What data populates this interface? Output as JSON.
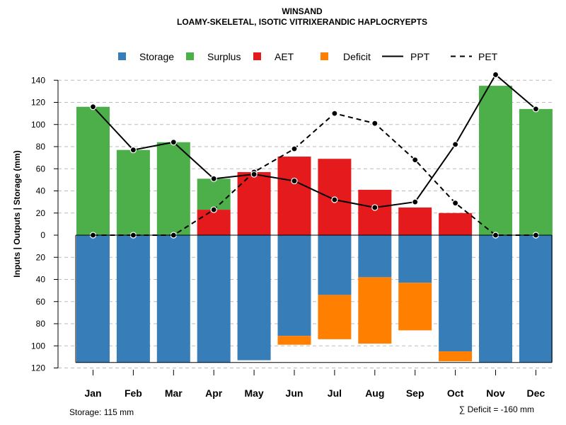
{
  "chart_data": {
    "type": "bar",
    "title": "WINSAND",
    "subtitle": "LOAMY-SKELETAL, ISOTIC VITRIXERANDIC HAPLOCRYEPTS",
    "ylabel": "Inputs | Outputs | Storage    (mm)",
    "categories": [
      "Jan",
      "Feb",
      "Mar",
      "Apr",
      "May",
      "Jun",
      "Jul",
      "Aug",
      "Sep",
      "Oct",
      "Nov",
      "Dec"
    ],
    "yticks_top": [
      0,
      20,
      40,
      60,
      80,
      100,
      120,
      140
    ],
    "yticks_bottom": [
      20,
      40,
      60,
      80,
      100,
      120
    ],
    "ylim_top": [
      0,
      150
    ],
    "ylim_bottom": [
      0,
      120
    ],
    "series": [
      {
        "name": "Storage",
        "color": "#377EB8",
        "values": [
          115,
          115,
          115,
          115,
          113,
          91,
          54,
          38,
          43,
          105,
          115,
          115
        ]
      },
      {
        "name": "Surplus",
        "color": "#4DAF4A",
        "values": [
          116,
          77,
          84,
          28,
          0,
          0,
          0,
          0,
          0,
          0,
          135,
          114
        ]
      },
      {
        "name": "AET",
        "color": "#E41A1C",
        "values": [
          0,
          0,
          0,
          23,
          57,
          71,
          69,
          41,
          25,
          20,
          0,
          0
        ]
      },
      {
        "name": "Deficit",
        "color": "#FF7F00",
        "values": [
          0,
          0,
          0,
          0,
          0,
          8,
          40,
          60,
          43,
          9,
          0,
          0
        ]
      },
      {
        "name": "PPT",
        "style": "solid",
        "values": [
          116,
          77,
          84,
          51,
          55,
          49,
          32,
          25,
          30,
          82,
          145,
          114
        ]
      },
      {
        "name": "PET",
        "style": "dashed",
        "values": [
          0,
          0,
          0,
          23,
          57,
          78,
          110,
          101,
          68,
          29,
          0,
          0
        ]
      }
    ],
    "footer_left": "Storage: 115 mm",
    "footer_right": "∑ Deficit = -160 mm"
  }
}
